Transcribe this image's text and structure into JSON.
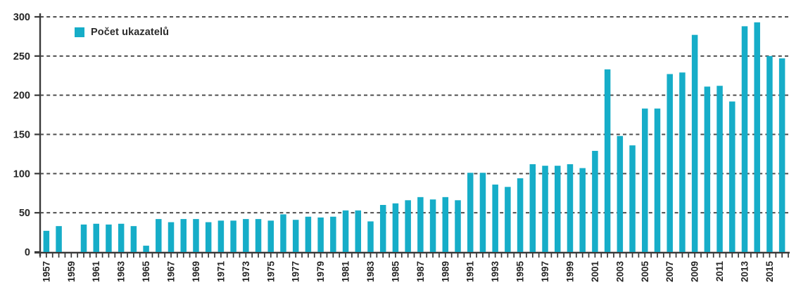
{
  "legend": {
    "label": "Počet ukazatelů",
    "swatch_color": "#16adc8"
  },
  "chart_data": {
    "type": "bar",
    "title": "",
    "series_name": "Počet ukazatelů",
    "categories": [
      1957,
      1958,
      1959,
      1960,
      1961,
      1962,
      1963,
      1964,
      1965,
      1966,
      1967,
      1968,
      1969,
      1970,
      1971,
      1972,
      1973,
      1974,
      1975,
      1976,
      1977,
      1978,
      1979,
      1980,
      1981,
      1982,
      1983,
      1984,
      1985,
      1986,
      1987,
      1988,
      1989,
      1990,
      1991,
      1992,
      1993,
      1994,
      1995,
      1996,
      1997,
      1998,
      1999,
      2000,
      2001,
      2002,
      2003,
      2004,
      2005,
      2006,
      2007,
      2008,
      2009,
      2010,
      2011,
      2012,
      2013,
      2014,
      2015,
      2016
    ],
    "values": [
      27,
      33,
      0,
      35,
      36,
      35,
      36,
      33,
      8,
      42,
      38,
      42,
      42,
      38,
      40,
      40,
      42,
      42,
      40,
      48,
      41,
      45,
      44,
      45,
      53,
      53,
      39,
      60,
      62,
      66,
      70,
      67,
      70,
      66,
      101,
      101,
      86,
      83,
      94,
      112,
      110,
      110,
      112,
      107,
      129,
      233,
      148,
      136,
      183,
      183,
      227,
      229,
      277,
      211,
      212,
      192,
      288,
      293,
      250,
      247
    ],
    "xlabel": "",
    "ylabel": "",
    "ylim": [
      0,
      300
    ],
    "yticks": [
      0,
      50,
      100,
      150,
      200,
      250,
      300
    ],
    "xtick_labels": [
      "1957",
      "1959",
      "1961",
      "1963",
      "1965",
      "1967",
      "1969",
      "1971",
      "1973",
      "1975",
      "1977",
      "1979",
      "1981",
      "1983",
      "1985",
      "1987",
      "1989",
      "1991",
      "1993",
      "1995",
      "1997",
      "1999",
      "2001",
      "2003",
      "2005",
      "2007",
      "2009",
      "2011",
      "2013",
      "2015"
    ],
    "grid": "horizontal-dashed",
    "legend_position": "top-left",
    "bar_color": "#16adc8",
    "grid_color": "#4f4f4f",
    "axis_color": "#3a3a3a",
    "text_color": "#262626"
  }
}
